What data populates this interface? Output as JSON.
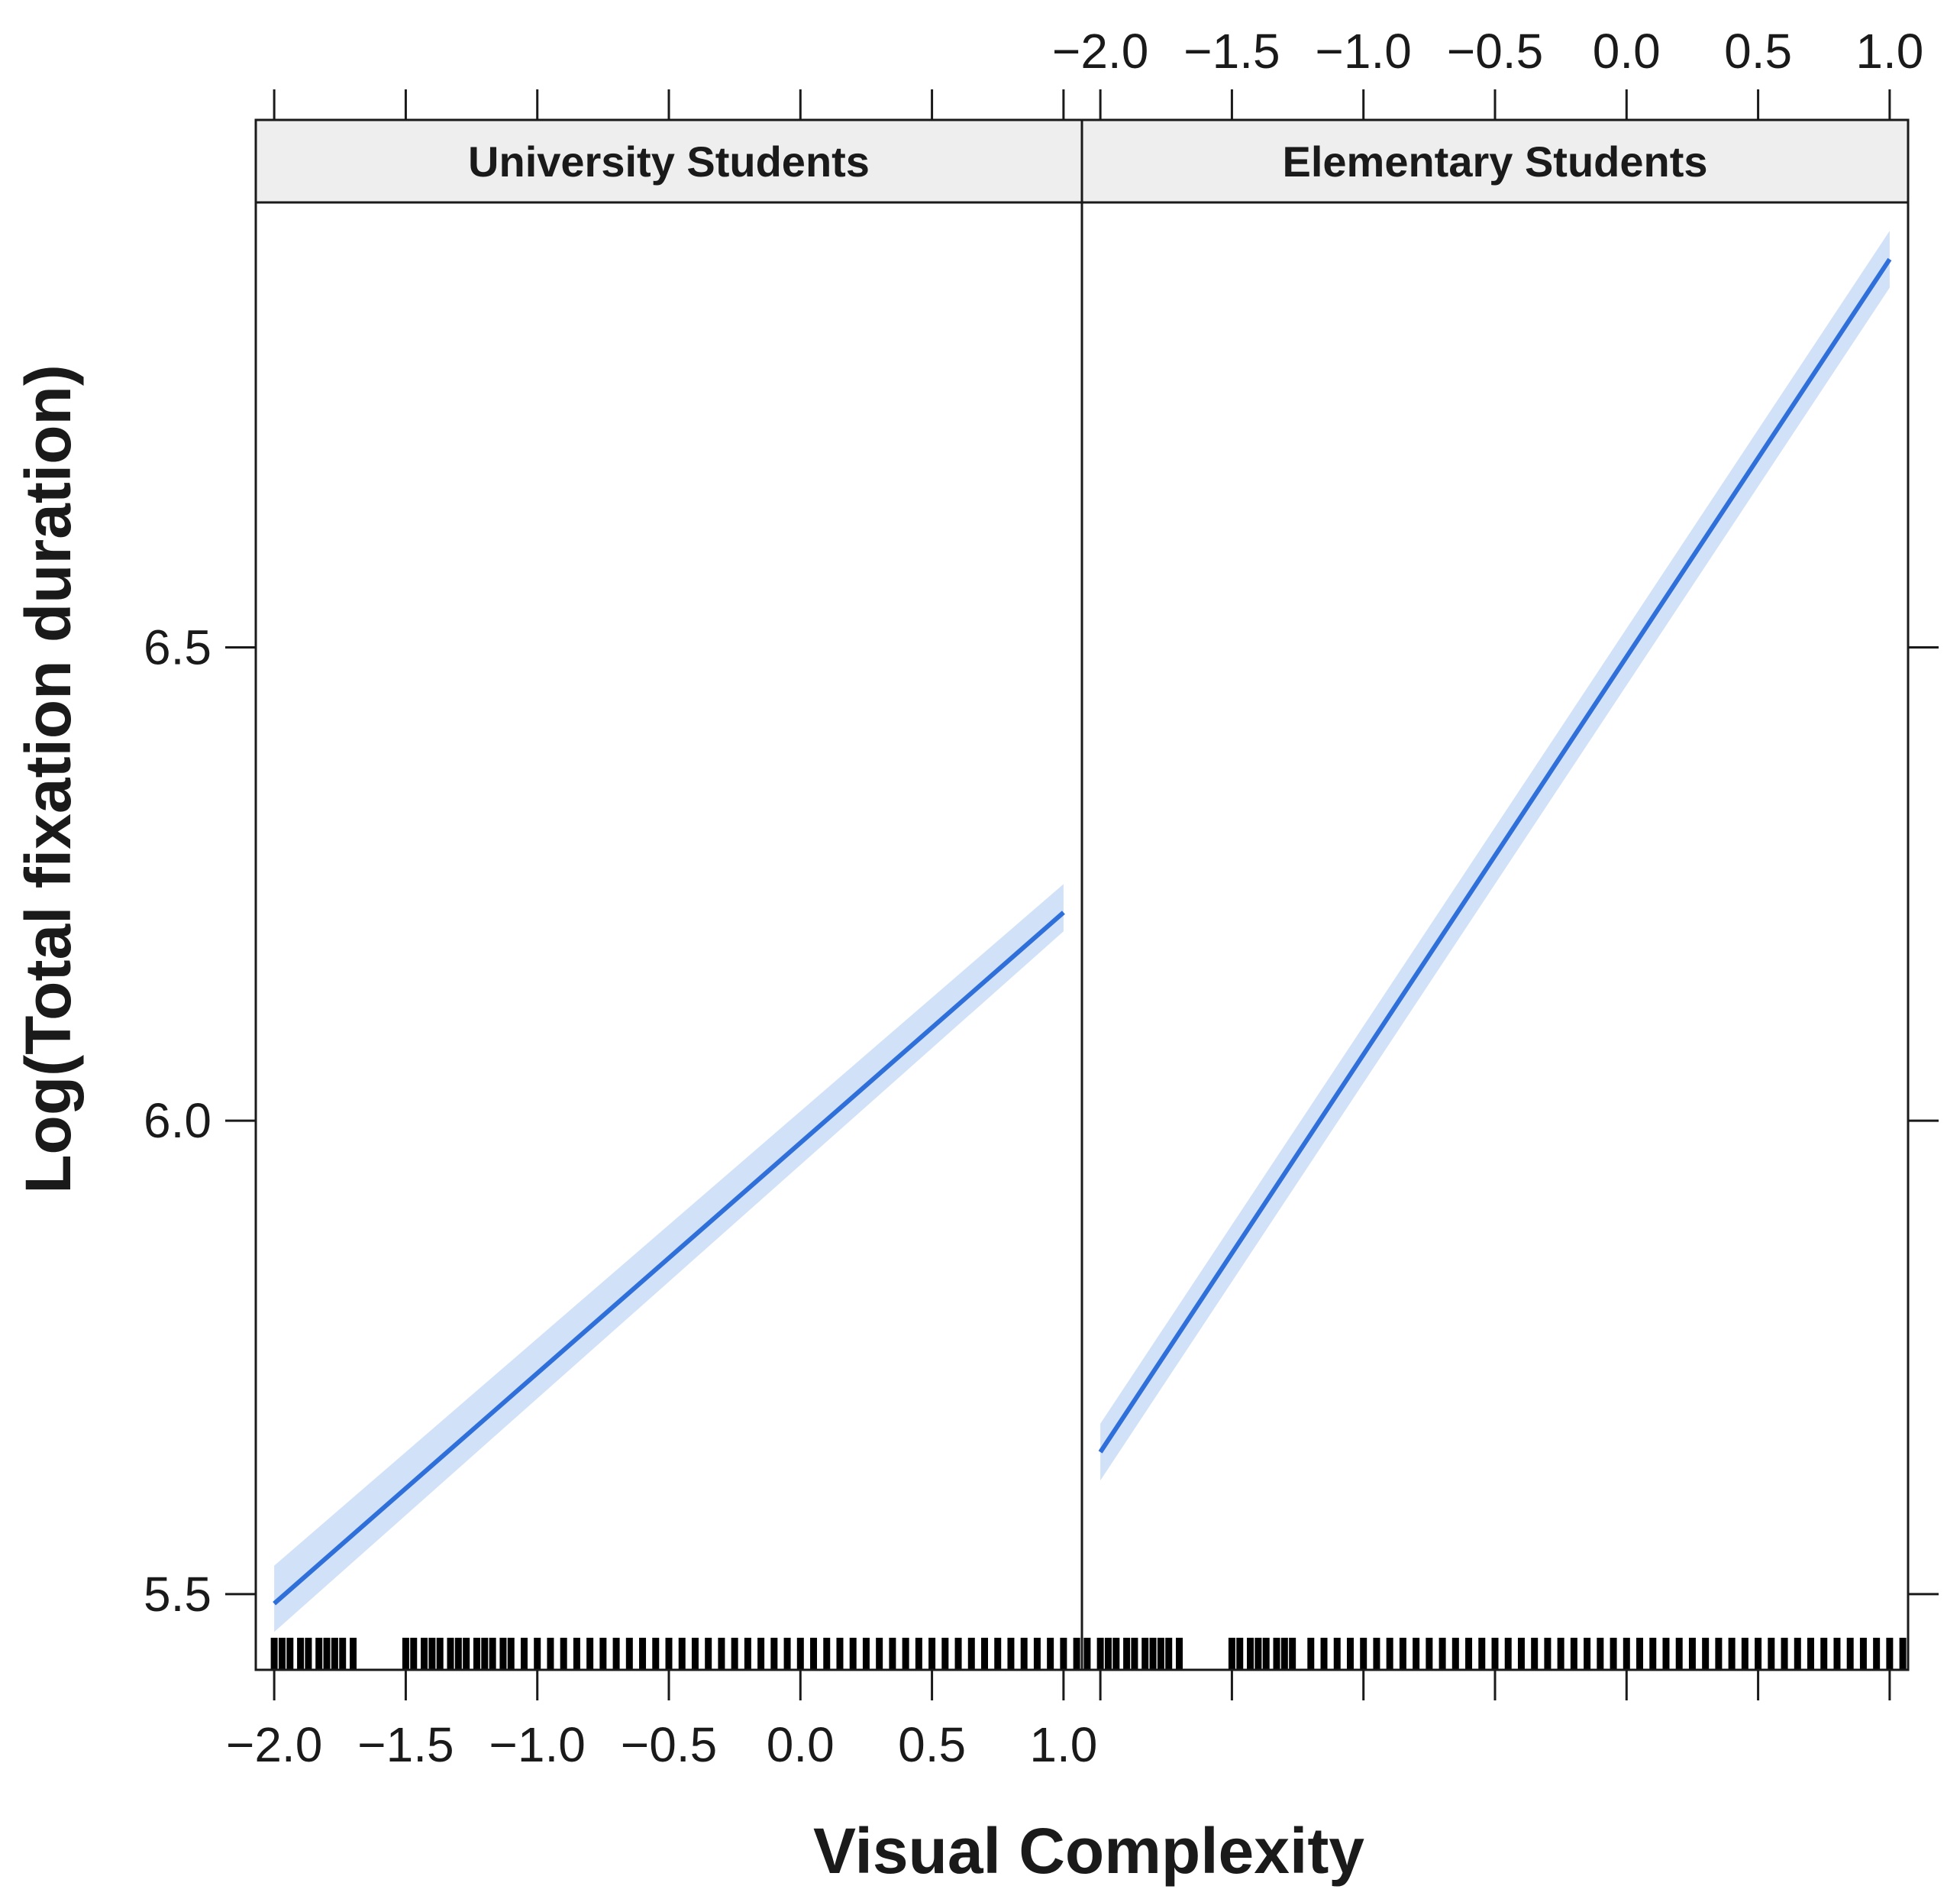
{
  "chart_data": {
    "type": "line",
    "xlabel": "Visual Complexity",
    "ylabel": "Log(Total fixation duration)",
    "xlim": [
      -2.07,
      1.07
    ],
    "ylim": [
      5.42,
      6.97
    ],
    "x_ticks": [
      -2.0,
      -1.5,
      -1.0,
      -0.5,
      0.0,
      0.5,
      1.0
    ],
    "x_tick_labels": [
      "−2.0",
      "−1.5",
      "−1.0",
      "−0.5",
      "0.0",
      "0.5",
      "1.0"
    ],
    "y_ticks": [
      5.5,
      6.0,
      6.5
    ],
    "y_tick_labels": [
      "5.5",
      "6.0",
      "6.5"
    ],
    "grid": false,
    "line_color": "#2f6fd9",
    "band_color": "#c9dcf7",
    "panels": [
      {
        "label": "University Students",
        "x": [
          -2.0,
          1.0
        ],
        "y": [
          5.49,
          6.22
        ],
        "ci_lower": [
          5.46,
          6.2
        ],
        "ci_upper": [
          5.53,
          6.25
        ]
      },
      {
        "label": "Elementary Students",
        "x": [
          -2.0,
          1.0
        ],
        "y": [
          5.65,
          6.91
        ],
        "ci_lower": [
          5.62,
          6.88
        ],
        "ci_upper": [
          5.68,
          6.94
        ]
      }
    ],
    "rug": [
      [
        -2.0,
        -1.97,
        -1.94,
        -1.9,
        -1.87,
        -1.83,
        -1.8,
        -1.77,
        -1.74,
        -1.7,
        -1.5,
        -1.47,
        -1.43,
        -1.4,
        -1.37,
        -1.33,
        -1.3,
        -1.27,
        -1.23,
        -1.2,
        -1.17,
        -1.13,
        -1.1,
        -1.05,
        -1.0,
        -0.95,
        -0.9,
        -0.85,
        -0.8,
        -0.75,
        -0.7,
        -0.65,
        -0.6,
        -0.55,
        -0.5,
        -0.45,
        -0.4,
        -0.35,
        -0.3,
        -0.25,
        -0.2,
        -0.15,
        -0.1,
        -0.05,
        0.0,
        0.05,
        0.1,
        0.15,
        0.2,
        0.25,
        0.3,
        0.35,
        0.4,
        0.45,
        0.5,
        0.55,
        0.6,
        0.65,
        0.7,
        0.75,
        0.8,
        0.85,
        0.9,
        0.95,
        1.0,
        1.05
      ],
      [
        -2.05,
        -2.0,
        -1.97,
        -1.94,
        -1.9,
        -1.87,
        -1.83,
        -1.8,
        -1.77,
        -1.74,
        -1.7,
        -1.5,
        -1.47,
        -1.43,
        -1.4,
        -1.37,
        -1.33,
        -1.3,
        -1.27,
        -1.2,
        -1.15,
        -1.1,
        -1.05,
        -1.0,
        -0.95,
        -0.9,
        -0.85,
        -0.8,
        -0.75,
        -0.7,
        -0.65,
        -0.6,
        -0.55,
        -0.5,
        -0.45,
        -0.4,
        -0.35,
        -0.3,
        -0.25,
        -0.2,
        -0.15,
        -0.1,
        -0.05,
        0.0,
        0.05,
        0.1,
        0.15,
        0.2,
        0.25,
        0.3,
        0.35,
        0.4,
        0.45,
        0.5,
        0.55,
        0.6,
        0.65,
        0.7,
        0.75,
        0.8,
        0.85,
        0.9,
        0.95,
        1.0,
        1.05
      ]
    ]
  }
}
